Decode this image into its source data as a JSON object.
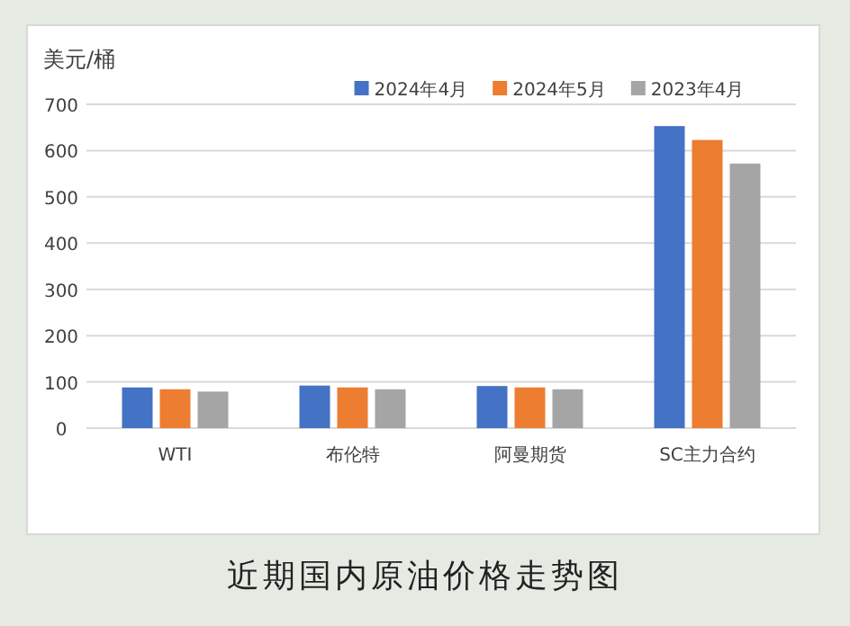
{
  "chart_data": {
    "type": "bar",
    "title": "近期国内原油价格走势图",
    "ylabel": "美元/桶",
    "categories": [
      "WTI",
      "布伦特",
      "阿曼期货",
      "SC主力合约"
    ],
    "series": [
      {
        "name": "2024年4月",
        "color": "#4472c4",
        "values": [
          88,
          92,
          91,
          653
        ]
      },
      {
        "name": "2024年5月",
        "color": "#ed7d31",
        "values": [
          84,
          88,
          88,
          623
        ]
      },
      {
        "name": "2023年4月",
        "color": "#a5a5a5",
        "values": [
          79,
          84,
          84,
          572
        ]
      }
    ],
    "ylim": [
      0,
      700
    ],
    "yticks": [
      0,
      100,
      200,
      300,
      400,
      500,
      600,
      700
    ],
    "grid": "y",
    "legend": "top"
  }
}
